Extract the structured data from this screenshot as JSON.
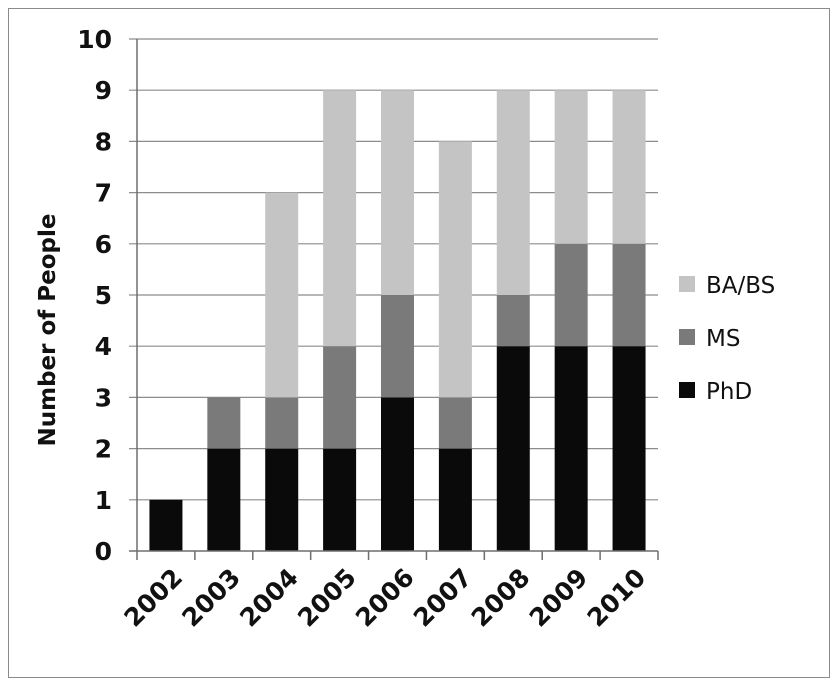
{
  "chart_data": {
    "type": "bar",
    "stacked": true,
    "categories": [
      "2002",
      "2003",
      "2004",
      "2005",
      "2006",
      "2007",
      "2008",
      "2009",
      "2010"
    ],
    "series": [
      {
        "name": "PhD",
        "values": [
          1,
          2,
          2,
          2,
          3,
          2,
          4,
          4,
          4
        ],
        "color": "#0a0a0a"
      },
      {
        "name": "MS",
        "values": [
          0,
          1,
          1,
          2,
          2,
          1,
          1,
          2,
          2
        ],
        "color": "#7a7a7a"
      },
      {
        "name": "BA/BS",
        "values": [
          0,
          0,
          4,
          5,
          4,
          5,
          4,
          3,
          3
        ],
        "color": "#c4c4c4"
      }
    ],
    "title": "",
    "xlabel": "",
    "ylabel": "Number of People",
    "ylim": [
      0,
      10
    ],
    "yticks": [
      "0",
      "1",
      "2",
      "3",
      "4",
      "5",
      "6",
      "7",
      "8",
      "9",
      "10"
    ],
    "grid": true,
    "legend_position": "right",
    "legend_order": [
      "BA/BS",
      "MS",
      "PhD"
    ]
  }
}
